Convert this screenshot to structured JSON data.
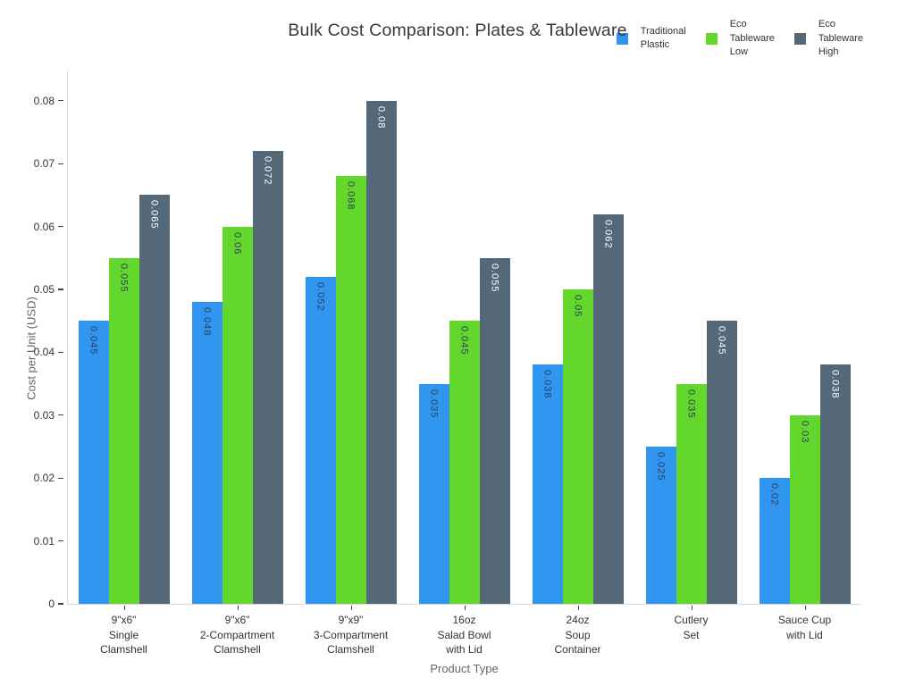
{
  "chart_data": {
    "type": "bar",
    "title": "Bulk Cost Comparison: Plates & Tableware",
    "xlabel": "Product Type",
    "ylabel": "Cost per Unit (USD)",
    "legend_position": "top-right horizontal",
    "grid": false,
    "ylim": [
      0,
      0.0848
    ],
    "yticks": [
      0,
      0.01,
      0.02,
      0.03,
      0.04,
      0.05,
      0.06,
      0.07,
      0.08
    ],
    "categories": [
      "9\"x6\"\nSingle\nClamshell",
      "9\"x6\"\n2-Compartment\nClamshell",
      "9\"x9\"\n3-Compartment\nClamshell",
      "16oz\nSalad Bowl\nwith Lid",
      "24oz\nSoup\nContainer",
      "Cutlery\nSet",
      "Sauce Cup\nwith Lid"
    ],
    "series": [
      {
        "name": "Traditional\nPlastic",
        "color": "#3196f0",
        "label_color": "#2a3f5f",
        "values": [
          0.045,
          0.048,
          0.052,
          0.035,
          0.038,
          0.025,
          0.02
        ]
      },
      {
        "name": "Eco\nTableware\nLow",
        "color": "#63d72b",
        "label_color": "#2a3f5f",
        "values": [
          0.055,
          0.06,
          0.068,
          0.045,
          0.05,
          0.035,
          0.03
        ]
      },
      {
        "name": "Eco\nTableware\nHigh",
        "color": "#556878",
        "label_color": "#ffffff",
        "values": [
          0.065,
          0.072,
          0.08,
          0.055,
          0.062,
          0.045,
          0.038
        ]
      }
    ],
    "colors": {
      "axis_line": "#d9d9d9",
      "tick_mark": "#444444",
      "tick_label": "#333333",
      "axis_title": "#666666",
      "title": "#383838"
    }
  }
}
